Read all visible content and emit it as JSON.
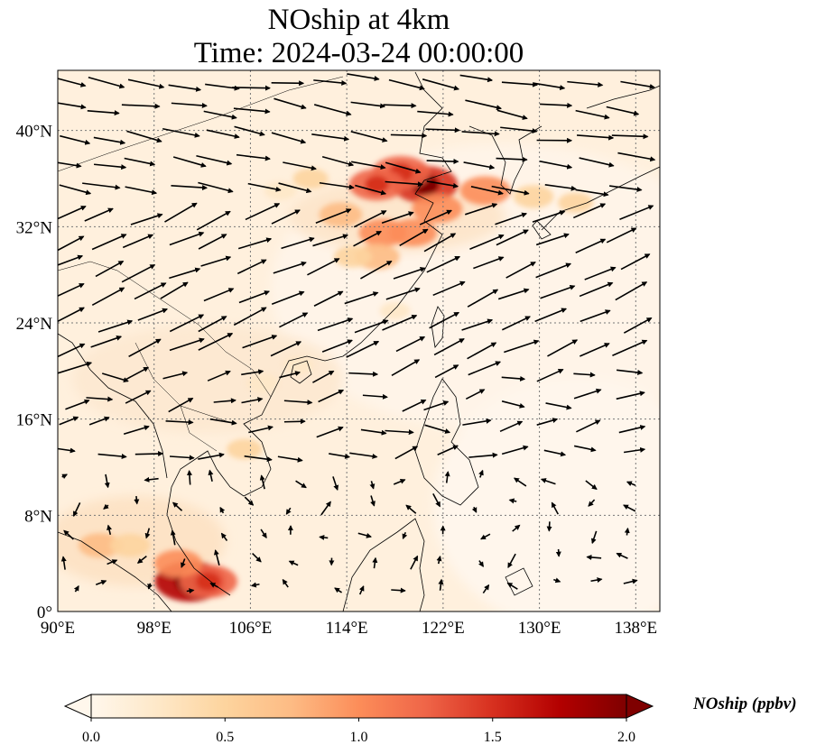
{
  "title": "NOship at 4km",
  "subtitle": "Time: 2024-03-24 00:00:00",
  "colorbar": {
    "label": "NOship (ppbv)",
    "min": 0.0,
    "max": 2.0,
    "ticks": [
      "0.0",
      "0.5",
      "1.0",
      "1.5",
      "2.0"
    ],
    "extend": "both",
    "colormap": [
      "#fff7ec",
      "#fee8c8",
      "#fdd49e",
      "#fdbb84",
      "#fc8d59",
      "#ef6548",
      "#d7301f",
      "#b30000",
      "#7f0000"
    ]
  },
  "map": {
    "lon_range": [
      90,
      140
    ],
    "lat_range": [
      0,
      45
    ],
    "x_ticks": [
      "90°E",
      "98°E",
      "106°E",
      "114°E",
      "122°E",
      "130°E",
      "138°E"
    ],
    "y_ticks": [
      "0°",
      "8°N",
      "16°N",
      "24°N",
      "32°N",
      "40°N"
    ],
    "x_tick_values": [
      90,
      98,
      106,
      114,
      122,
      130,
      138
    ],
    "y_tick_values": [
      0,
      8,
      16,
      24,
      32,
      40
    ],
    "gridlines": "dotted",
    "hotspots": [
      {
        "lon": 120.5,
        "lat": 35.5,
        "value": 1.6
      },
      {
        "lon": 118.5,
        "lat": 36.5,
        "value": 1.3
      },
      {
        "lon": 116.5,
        "lat": 35.5,
        "value": 1.2
      },
      {
        "lon": 121.5,
        "lat": 33.5,
        "value": 1.0
      },
      {
        "lon": 125.5,
        "lat": 35.0,
        "value": 1.0
      },
      {
        "lon": 113.5,
        "lat": 33.0,
        "value": 0.7
      },
      {
        "lon": 117.0,
        "lat": 31.5,
        "value": 0.9
      },
      {
        "lon": 119.5,
        "lat": 31.5,
        "value": 0.9
      },
      {
        "lon": 116.5,
        "lat": 29.5,
        "value": 0.8
      },
      {
        "lon": 114.5,
        "lat": 29.5,
        "value": 0.5
      },
      {
        "lon": 111.0,
        "lat": 36.0,
        "value": 0.4
      },
      {
        "lon": 108.5,
        "lat": 35.0,
        "value": 0.3
      },
      {
        "lon": 129.5,
        "lat": 34.5,
        "value": 0.6
      },
      {
        "lon": 133.0,
        "lat": 34.0,
        "value": 0.4
      },
      {
        "lon": 101.0,
        "lat": 2.5,
        "value": 1.8
      },
      {
        "lon": 102.5,
        "lat": 2.5,
        "value": 1.3
      },
      {
        "lon": 100.0,
        "lat": 4.0,
        "value": 0.9
      },
      {
        "lon": 93.5,
        "lat": 5.5,
        "value": 0.7
      },
      {
        "lon": 96.0,
        "lat": 5.5,
        "value": 0.6
      },
      {
        "lon": 105.5,
        "lat": 13.5,
        "value": 0.4
      },
      {
        "lon": 107.0,
        "lat": 19.0,
        "value": 0.3
      },
      {
        "lon": 110.0,
        "lat": 20.5,
        "value": 0.25
      },
      {
        "lon": 118.0,
        "lat": 25.0,
        "value": 0.2
      }
    ]
  }
}
